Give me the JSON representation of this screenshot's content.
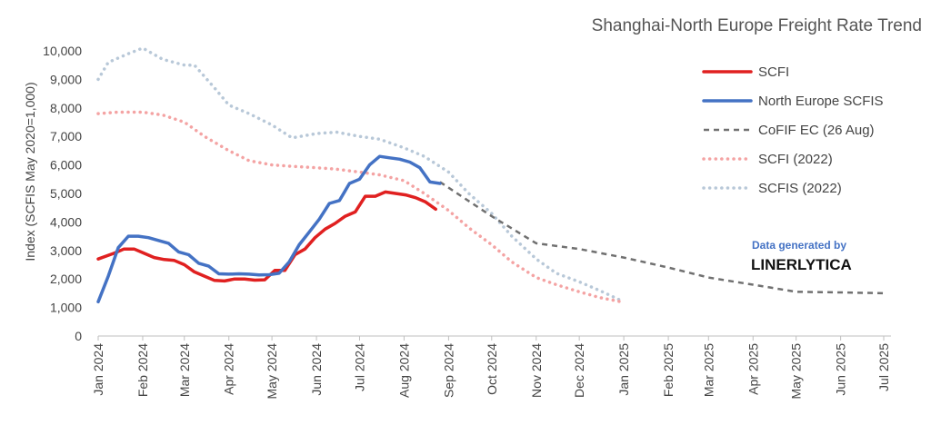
{
  "colors": {
    "scfi": "#e02020",
    "north_europe_scfis": "#4472c4",
    "cofif": "#707070",
    "scfi_2022": "#f4a3a3",
    "scfis_2022": "#b8c8d8",
    "credit_accent": "#4472c4"
  },
  "credit": {
    "line1": "Data generated by",
    "line2": "LINERLYTICA"
  },
  "chart_data": {
    "type": "line",
    "title": "Shanghai-North Europe Freight Rate Trend",
    "xlabel": "",
    "ylabel": "Index (SCFIS May 2020=1,000)",
    "ylim": [
      0,
      10000
    ],
    "yticks": [
      0,
      1000,
      2000,
      3000,
      4000,
      5000,
      6000,
      7000,
      8000,
      9000,
      10000
    ],
    "ytick_labels": [
      "0",
      "1,000",
      "2,000",
      "3,000",
      "4,000",
      "5,000",
      "6,000",
      "7,000",
      "8,000",
      "9,000",
      "10,000"
    ],
    "x_type": "date",
    "xlim": [
      "2024-01-01",
      "2025-07-01"
    ],
    "x_tick_labels": [
      "Jan 2024",
      "Feb 2024",
      "Mar 2024",
      "Apr 2024",
      "May 2024",
      "Jun 2024",
      "Jul 2024",
      "Aug 2024",
      "Sep 2024",
      "Oct 2024",
      "Nov 2024",
      "Dec 2024",
      "Jan 2025",
      "Feb 2025",
      "Mar 2025",
      "Apr 2025",
      "May 2025",
      "Jun 2025",
      "Jul 2025"
    ],
    "grid": false,
    "legend_position": "right",
    "series": [
      {
        "name": "SCFI",
        "key": "scfi",
        "style": "solid",
        "x": [
          "2024-01-01",
          "2024-01-12",
          "2024-01-19",
          "2024-01-26",
          "2024-02-02",
          "2024-02-09",
          "2024-02-16",
          "2024-02-23",
          "2024-03-01",
          "2024-03-08",
          "2024-03-15",
          "2024-03-22",
          "2024-03-29",
          "2024-04-05",
          "2024-04-12",
          "2024-04-19",
          "2024-04-26",
          "2024-05-03",
          "2024-05-10",
          "2024-05-17",
          "2024-05-24",
          "2024-05-31",
          "2024-06-07",
          "2024-06-14",
          "2024-06-21",
          "2024-06-28",
          "2024-07-05",
          "2024-07-12",
          "2024-07-19",
          "2024-07-26",
          "2024-08-02",
          "2024-08-09",
          "2024-08-16",
          "2024-08-23"
        ],
        "values": [
          2700,
          2900,
          3050,
          3050,
          2900,
          2750,
          2680,
          2650,
          2500,
          2250,
          2100,
          1950,
          1930,
          2000,
          2000,
          1960,
          1970,
          2300,
          2300,
          2850,
          3050,
          3450,
          3750,
          3950,
          4200,
          4350,
          4900,
          4900,
          5050,
          5000,
          4950,
          4850,
          4700,
          4450
        ]
      },
      {
        "name": "North Europe SCFIS",
        "key": "north_europe_scfis",
        "style": "solid",
        "x": [
          "2024-01-01",
          "2024-01-08",
          "2024-01-15",
          "2024-01-22",
          "2024-01-29",
          "2024-02-05",
          "2024-02-12",
          "2024-02-19",
          "2024-02-26",
          "2024-03-04",
          "2024-03-11",
          "2024-03-18",
          "2024-03-25",
          "2024-04-01",
          "2024-04-08",
          "2024-04-15",
          "2024-04-22",
          "2024-04-29",
          "2024-05-06",
          "2024-05-13",
          "2024-05-20",
          "2024-05-27",
          "2024-06-03",
          "2024-06-10",
          "2024-06-17",
          "2024-06-24",
          "2024-07-01",
          "2024-07-08",
          "2024-07-15",
          "2024-07-22",
          "2024-07-29",
          "2024-08-05",
          "2024-08-12",
          "2024-08-19",
          "2024-08-26"
        ],
        "values": [
          1200,
          2100,
          3100,
          3500,
          3500,
          3450,
          3350,
          3250,
          2950,
          2850,
          2550,
          2450,
          2180,
          2170,
          2180,
          2170,
          2140,
          2150,
          2200,
          2600,
          3200,
          3650,
          4100,
          4650,
          4750,
          5350,
          5500,
          6000,
          6300,
          6250,
          6200,
          6100,
          5900,
          5400,
          5350
        ]
      },
      {
        "name": "CoFIF EC (26 Aug)",
        "key": "cofif",
        "style": "dashed",
        "x": [
          "2024-08-26",
          "2024-10-01",
          "2024-11-01",
          "2024-12-01",
          "2025-01-01",
          "2025-02-01",
          "2025-03-01",
          "2025-04-01",
          "2025-05-01",
          "2025-06-01",
          "2025-07-01"
        ],
        "values": [
          5400,
          4200,
          3250,
          3050,
          2750,
          2400,
          2050,
          1800,
          1550,
          1530,
          1500
        ]
      },
      {
        "name": "SCFI (2022)",
        "key": "scfi_2022",
        "style": "dotted",
        "x": [
          "2024-01-01",
          "2024-01-15",
          "2024-02-01",
          "2024-02-15",
          "2024-03-01",
          "2024-03-15",
          "2024-04-01",
          "2024-04-15",
          "2024-05-01",
          "2024-05-15",
          "2024-06-01",
          "2024-06-15",
          "2024-07-01",
          "2024-07-15",
          "2024-08-01",
          "2024-08-15",
          "2024-09-01",
          "2024-09-15",
          "2024-10-01",
          "2024-10-15",
          "2024-11-01",
          "2024-11-15",
          "2024-12-01",
          "2024-12-15",
          "2025-01-01"
        ],
        "values": [
          7800,
          7850,
          7850,
          7750,
          7500,
          7000,
          6500,
          6150,
          6000,
          5950,
          5900,
          5850,
          5750,
          5650,
          5450,
          5000,
          4400,
          3800,
          3200,
          2600,
          2050,
          1800,
          1550,
          1350,
          1180
        ]
      },
      {
        "name": "SCFIS (2022)",
        "key": "scfis_2022",
        "style": "dotted",
        "x": [
          "2024-01-01",
          "2024-01-08",
          "2024-01-22",
          "2024-02-01",
          "2024-02-15",
          "2024-03-01",
          "2024-03-08",
          "2024-03-22",
          "2024-04-01",
          "2024-04-15",
          "2024-05-01",
          "2024-05-15",
          "2024-06-01",
          "2024-06-15",
          "2024-07-01",
          "2024-07-15",
          "2024-08-01",
          "2024-08-15",
          "2024-09-01",
          "2024-09-15",
          "2024-10-01",
          "2024-10-15",
          "2024-11-01",
          "2024-11-15",
          "2024-12-01",
          "2024-12-15",
          "2025-01-01"
        ],
        "values": [
          9000,
          9600,
          9900,
          10100,
          9700,
          9500,
          9500,
          8700,
          8100,
          7800,
          7400,
          6950,
          7100,
          7150,
          7000,
          6900,
          6600,
          6300,
          5750,
          5000,
          4300,
          3500,
          2700,
          2200,
          1900,
          1600,
          1200
        ]
      }
    ]
  }
}
